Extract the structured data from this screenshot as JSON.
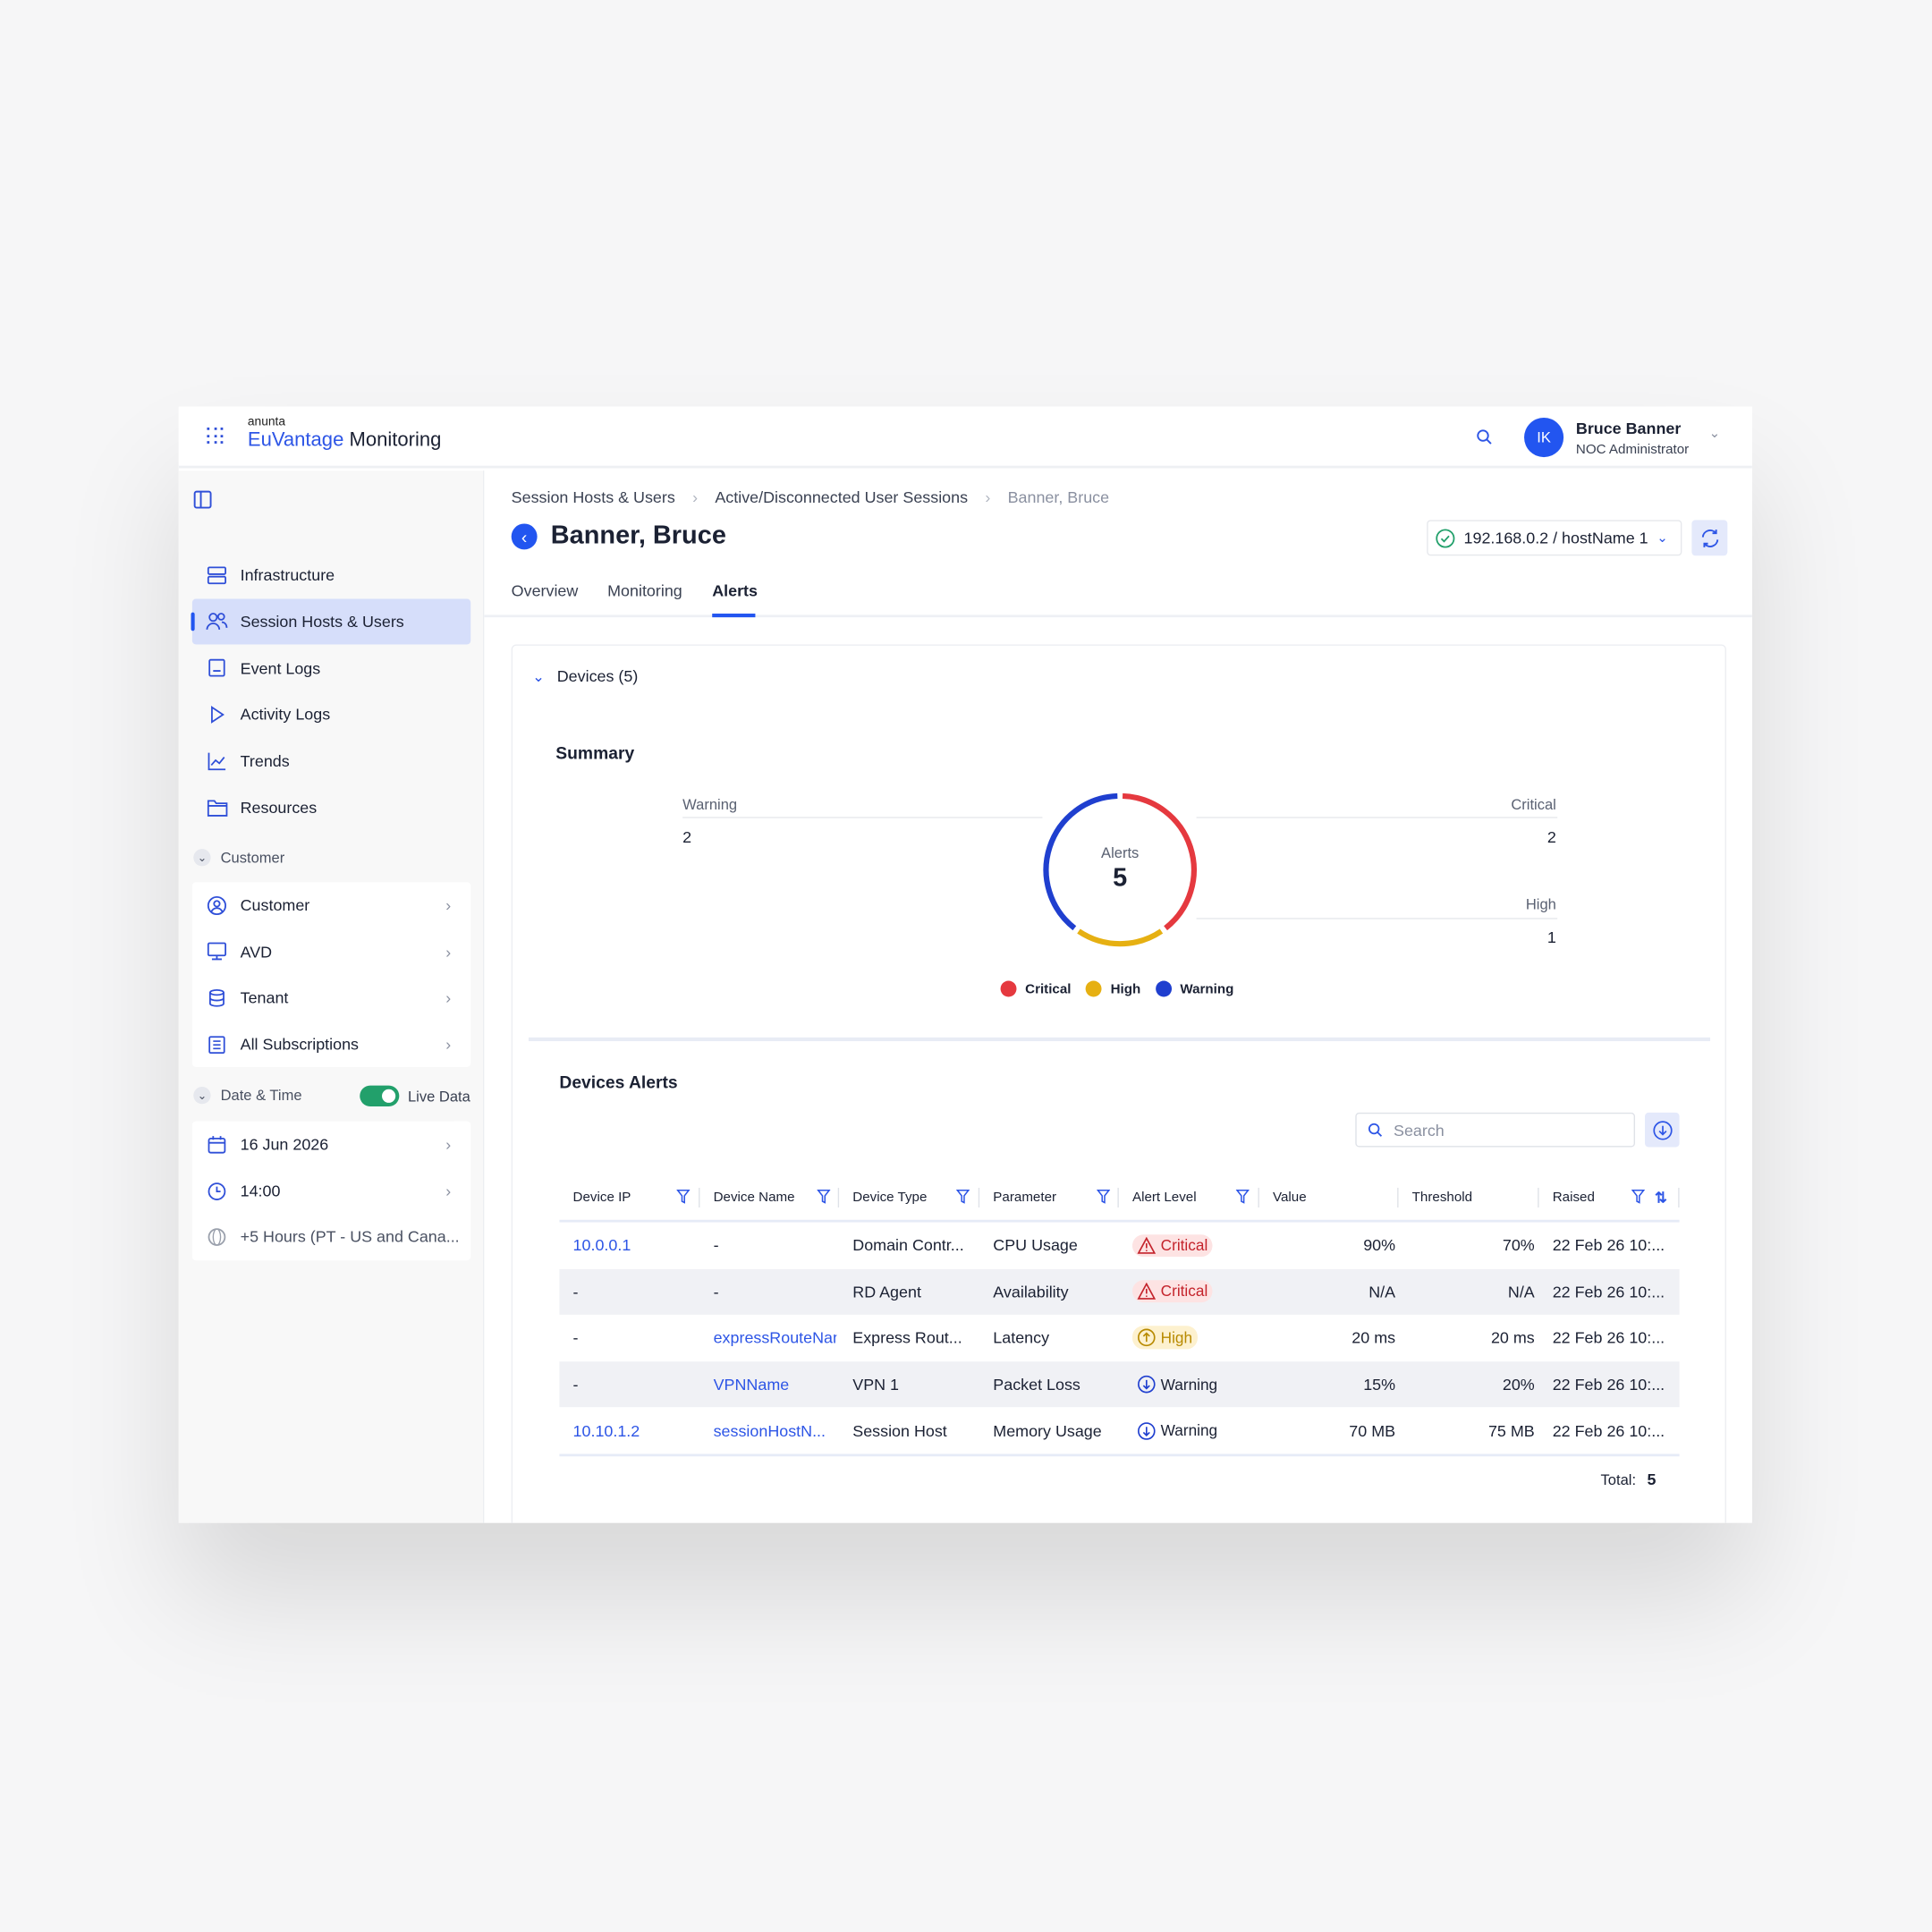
{
  "app": {
    "brand_small": "anunta",
    "brand_main": "EuVantage",
    "brand_suffix": "Monitoring"
  },
  "user": {
    "initials": "IK",
    "name": "Bruce Banner",
    "role": "NOC Administrator"
  },
  "sidebar": {
    "items": [
      {
        "label": "Infrastructure",
        "icon": "server-icon"
      },
      {
        "label": "Session Hosts & Users",
        "icon": "users-icon",
        "active": true
      },
      {
        "label": "Event Logs",
        "icon": "log-icon"
      },
      {
        "label": "Activity Logs",
        "icon": "play-icon"
      },
      {
        "label": "Trends",
        "icon": "chart-line-icon"
      },
      {
        "label": "Resources",
        "icon": "folder-icon"
      }
    ],
    "customer_header": "Customer",
    "customer_items": [
      {
        "label": "Customer"
      },
      {
        "label": "AVD"
      },
      {
        "label": "Tenant"
      },
      {
        "label": "All Subscriptions"
      }
    ],
    "datetime_header": "Date & Time",
    "live_label": "Live Data",
    "live_on": true,
    "date": "16 Jun 2026",
    "time": "14:00",
    "timezone": "+5 Hours (PT - US and Cana..."
  },
  "breadcrumb": [
    "Session Hosts & Users",
    "Active/Disconnected User Sessions",
    "Banner, Bruce"
  ],
  "title": "Banner, Bruce",
  "host_select": "192.168.0.2 / hostName 1",
  "tabs": [
    {
      "label": "Overview"
    },
    {
      "label": "Monitoring"
    },
    {
      "label": "Alerts",
      "active": true
    }
  ],
  "devices_header": "Devices (5)",
  "summary": {
    "title": "Summary",
    "center_label": "Alerts",
    "total": "5",
    "warning_label": "Warning",
    "warning": "2",
    "critical_label": "Critical",
    "critical": "2",
    "high_label": "High",
    "high": "1",
    "legend": [
      {
        "label": "Critical",
        "color": "#e5393f"
      },
      {
        "label": "High",
        "color": "#e6b012"
      },
      {
        "label": "Warning",
        "color": "#1f3fcf"
      }
    ]
  },
  "alerts": {
    "title": "Devices Alerts",
    "search_placeholder": "Search",
    "columns": [
      "Device IP",
      "Device Name",
      "Device Type",
      "Parameter",
      "Alert Level",
      "Value",
      "Threshold",
      "Raised"
    ],
    "rows": [
      [
        "10.0.0.1",
        "-",
        "Domain Contr...",
        "CPU Usage",
        "Critical",
        "90%",
        "70%",
        "22 Feb 26 10:..."
      ],
      [
        "-",
        "-",
        "RD Agent",
        "Availability",
        "Critical",
        "N/A",
        "N/A",
        "22 Feb 26 10:..."
      ],
      [
        "-",
        "expressRouteNam",
        "Express Rout...",
        "Latency",
        "High",
        "20 ms",
        "20 ms",
        "22 Feb 26 10:..."
      ],
      [
        "-",
        "VPNName",
        "VPN 1",
        "Packet Loss",
        "Warning",
        "15%",
        "20%",
        "22 Feb 26 10:..."
      ],
      [
        "10.10.1.2",
        "sessionHostN...",
        "Session Host",
        "Memory Usage",
        "Warning",
        "70 MB",
        "75 MB",
        "22 Feb 26 10:..."
      ]
    ],
    "total_label": "Total:",
    "total": "5"
  }
}
